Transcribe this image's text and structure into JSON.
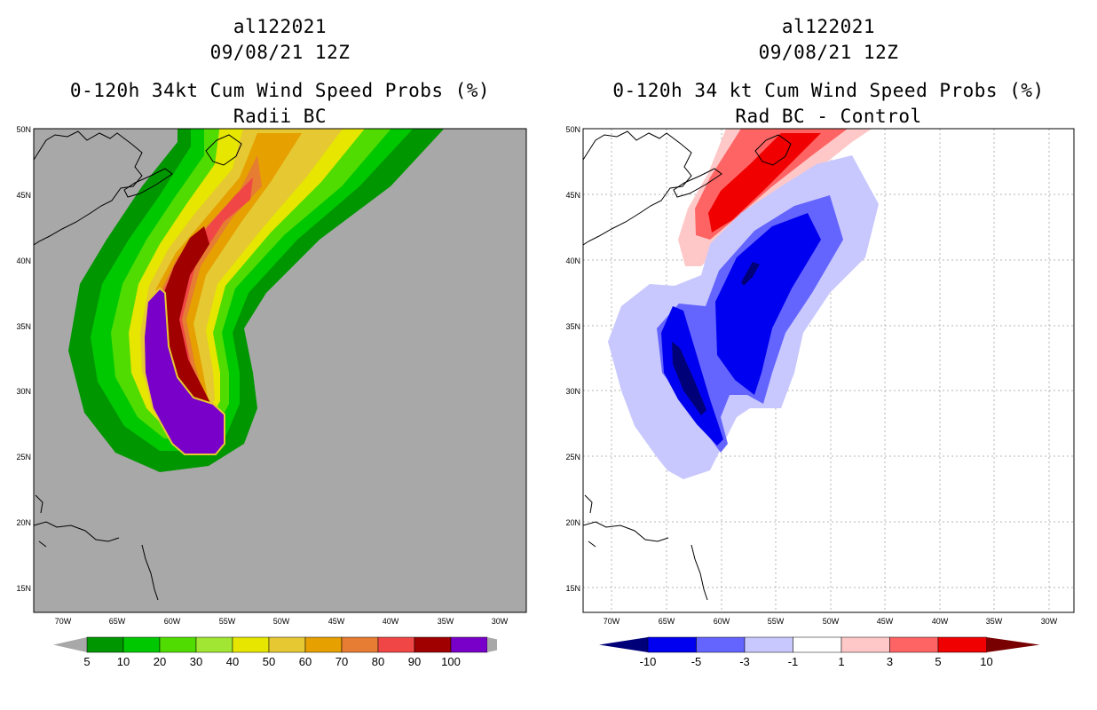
{
  "left": {
    "storm_id": "al122021",
    "datetime": "09/08/21 12Z",
    "title": "0-120h 34kt Cum Wind Speed Probs (%)",
    "subtitle": "Radii BC",
    "colorbar": {
      "labels": [
        "5",
        "10",
        "20",
        "30",
        "40",
        "50",
        "60",
        "70",
        "80",
        "90",
        "100"
      ],
      "colors": [
        "#009600",
        "#00c800",
        "#50dc00",
        "#a0e632",
        "#e6e600",
        "#e6c832",
        "#e6a000",
        "#e67d32",
        "#f04646",
        "#a00000",
        "#7800c8"
      ]
    }
  },
  "right": {
    "storm_id": "al122021",
    "datetime": "09/08/21 12Z",
    "title": "0-120h 34 kt Cum Wind Speed Probs (%)",
    "subtitle": "Rad BC - Control",
    "colorbar": {
      "labels": [
        "-10",
        "-5",
        "-3",
        "-1",
        "1",
        "3",
        "5",
        "10"
      ],
      "colors": [
        "#000078",
        "#0000f0",
        "#6464ff",
        "#c8c8ff",
        "#ffffff",
        "#ffc8c8",
        "#ff6464",
        "#f00000",
        "#780000"
      ]
    }
  },
  "axes": {
    "x_labels": [
      "70W",
      "65W",
      "60W",
      "55W",
      "50W",
      "45W",
      "40W",
      "35W",
      "30W"
    ],
    "y_labels": [
      "50N",
      "45N",
      "40N",
      "35N",
      "30N",
      "25N",
      "20N",
      "15N"
    ]
  }
}
